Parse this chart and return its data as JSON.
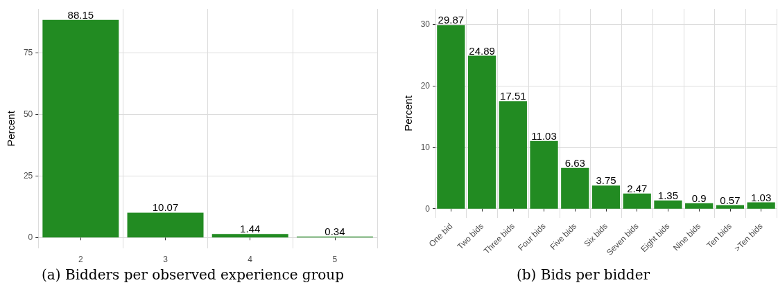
{
  "chart_data": [
    {
      "type": "bar",
      "title": "(a) Bidders per observed experience group",
      "ylabel": "Percent",
      "categories": [
        "2",
        "3",
        "4",
        "5"
      ],
      "values": [
        88.15,
        10.07,
        1.44,
        0.34
      ],
      "color": "#228b22",
      "ylim": [
        -4.4,
        92.6
      ],
      "yticks": [
        0,
        25,
        50,
        75
      ],
      "grid": true,
      "data_labels": true
    },
    {
      "type": "bar",
      "title": "(b) Bids per bidder",
      "ylabel": "Percent",
      "categories": [
        "One bid",
        "Two bids",
        "Three bids",
        "Four bids",
        "Five bids",
        "Six bids",
        "Seven bids",
        "Eight bids",
        "Nine bids",
        "Ten bids",
        ">Ten bids"
      ],
      "values": [
        29.87,
        24.89,
        17.51,
        11.03,
        6.63,
        3.75,
        2.47,
        1.35,
        0.9,
        0.57,
        1.03
      ],
      "color": "#228b22",
      "ylim": [
        -1.5,
        32.5
      ],
      "yticks": [
        0,
        10,
        20,
        30
      ],
      "grid": true,
      "data_labels": true
    }
  ]
}
